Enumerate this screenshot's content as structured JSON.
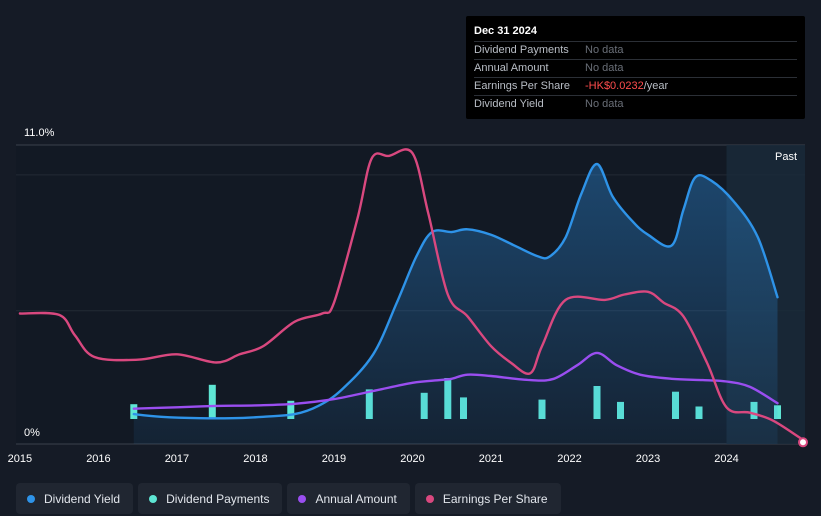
{
  "tooltip": {
    "date": "Dec 31 2024",
    "rows": [
      {
        "label": "Dividend Payments",
        "value": "No data"
      },
      {
        "label": "Annual Amount",
        "value": "No data"
      },
      {
        "label": "Earnings Per Share",
        "value": "-HK$0.0232",
        "unit": "/year"
      },
      {
        "label": "Dividend Yield",
        "value": "No data"
      }
    ]
  },
  "legend": [
    {
      "label": "Dividend Yield",
      "color": "#2e93e8"
    },
    {
      "label": "Dividend Payments",
      "color": "#5ee6d4"
    },
    {
      "label": "Annual Amount",
      "color": "#9a4ef0"
    },
    {
      "label": "Earnings Per Share",
      "color": "#d9487f"
    }
  ],
  "chart_data": {
    "type": "line",
    "title": "",
    "y_max_label": "11.0%",
    "y_min_label": "0%",
    "ylim": [
      0,
      11
    ],
    "xlim": [
      2014.95,
      2025.0
    ],
    "past_label": "Past",
    "past_start": 2024.0,
    "x_ticks": [
      "2015",
      "2016",
      "2017",
      "2018",
      "2019",
      "2020",
      "2021",
      "2022",
      "2023",
      "2024"
    ],
    "series": [
      {
        "name": "Dividend Yield",
        "color": "#2e93e8",
        "filled": true,
        "points": [
          [
            2016.45,
            1.1
          ],
          [
            2016.8,
            1.0
          ],
          [
            2017.3,
            0.95
          ],
          [
            2017.7,
            0.95
          ],
          [
            2018.1,
            1.0
          ],
          [
            2018.5,
            1.1
          ],
          [
            2018.8,
            1.4
          ],
          [
            2019.1,
            2.0
          ],
          [
            2019.5,
            3.3
          ],
          [
            2019.8,
            5.2
          ],
          [
            2020.05,
            6.9
          ],
          [
            2020.25,
            7.8
          ],
          [
            2020.5,
            7.8
          ],
          [
            2020.7,
            7.9
          ],
          [
            2021.0,
            7.7
          ],
          [
            2021.3,
            7.3
          ],
          [
            2021.6,
            6.9
          ],
          [
            2021.75,
            6.9
          ],
          [
            2021.95,
            7.6
          ],
          [
            2022.15,
            9.2
          ],
          [
            2022.35,
            10.3
          ],
          [
            2022.55,
            9.1
          ],
          [
            2022.8,
            8.2
          ],
          [
            2023.0,
            7.7
          ],
          [
            2023.3,
            7.3
          ],
          [
            2023.45,
            8.6
          ],
          [
            2023.6,
            9.8
          ],
          [
            2023.8,
            9.7
          ],
          [
            2024.1,
            8.9
          ],
          [
            2024.4,
            7.6
          ],
          [
            2024.65,
            5.4
          ]
        ]
      },
      {
        "name": "Annual Amount",
        "color": "#9a4ef0",
        "filled": false,
        "points": [
          [
            2016.45,
            1.3
          ],
          [
            2017.0,
            1.35
          ],
          [
            2017.5,
            1.4
          ],
          [
            2018.0,
            1.42
          ],
          [
            2018.5,
            1.48
          ],
          [
            2019.0,
            1.65
          ],
          [
            2019.5,
            1.95
          ],
          [
            2020.0,
            2.25
          ],
          [
            2020.35,
            2.35
          ],
          [
            2020.5,
            2.4
          ],
          [
            2020.7,
            2.55
          ],
          [
            2021.0,
            2.5
          ],
          [
            2021.5,
            2.35
          ],
          [
            2021.8,
            2.4
          ],
          [
            2022.1,
            2.9
          ],
          [
            2022.35,
            3.35
          ],
          [
            2022.6,
            2.9
          ],
          [
            2022.9,
            2.55
          ],
          [
            2023.3,
            2.4
          ],
          [
            2023.7,
            2.35
          ],
          [
            2024.0,
            2.3
          ],
          [
            2024.3,
            2.1
          ],
          [
            2024.65,
            1.5
          ]
        ]
      },
      {
        "name": "Earnings Per Share",
        "color": "#d9487f",
        "filled": false,
        "points": [
          [
            2015.0,
            4.8
          ],
          [
            2015.5,
            4.75
          ],
          [
            2015.7,
            4.0
          ],
          [
            2015.95,
            3.2
          ],
          [
            2016.5,
            3.1
          ],
          [
            2017.0,
            3.3
          ],
          [
            2017.5,
            3.0
          ],
          [
            2017.8,
            3.3
          ],
          [
            2018.1,
            3.6
          ],
          [
            2018.5,
            4.5
          ],
          [
            2018.85,
            4.8
          ],
          [
            2019.0,
            5.2
          ],
          [
            2019.3,
            8.3
          ],
          [
            2019.48,
            10.5
          ],
          [
            2019.7,
            10.6
          ],
          [
            2020.0,
            10.7
          ],
          [
            2020.2,
            8.5
          ],
          [
            2020.45,
            5.5
          ],
          [
            2020.7,
            4.7
          ],
          [
            2021.0,
            3.6
          ],
          [
            2021.25,
            3.0
          ],
          [
            2021.5,
            2.6
          ],
          [
            2021.65,
            3.6
          ],
          [
            2021.95,
            5.3
          ],
          [
            2022.45,
            5.3
          ],
          [
            2022.7,
            5.5
          ],
          [
            2023.0,
            5.6
          ],
          [
            2023.2,
            5.2
          ],
          [
            2023.45,
            4.7
          ],
          [
            2023.75,
            3.0
          ],
          [
            2024.0,
            1.35
          ],
          [
            2024.3,
            1.15
          ],
          [
            2024.6,
            0.85
          ],
          [
            2025.0,
            0.1
          ]
        ]
      }
    ],
    "bars": {
      "name": "Dividend Payments",
      "color": "#5ee6d4",
      "points": [
        [
          2016.45,
          0.65
        ],
        [
          2017.45,
          1.5
        ],
        [
          2018.45,
          0.8
        ],
        [
          2019.45,
          1.3
        ],
        [
          2020.15,
          1.15
        ],
        [
          2020.45,
          1.8
        ],
        [
          2020.65,
          0.95
        ],
        [
          2021.65,
          0.85
        ],
        [
          2022.35,
          1.45
        ],
        [
          2022.65,
          0.75
        ],
        [
          2023.35,
          1.2
        ],
        [
          2023.65,
          0.55
        ],
        [
          2024.35,
          0.75
        ],
        [
          2024.65,
          0.6
        ]
      ]
    },
    "end_marker": {
      "x": 2025.0,
      "y": 0.1,
      "color": "#d9487f"
    }
  }
}
